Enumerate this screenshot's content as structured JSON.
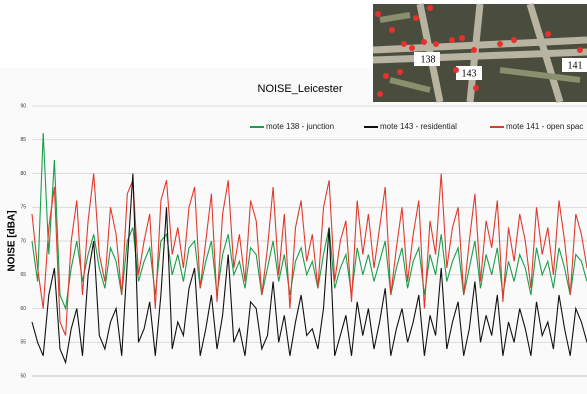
{
  "chart_data": {
    "type": "line",
    "title": "NOISE_Leicester",
    "y_label": "NOISE [dBA]",
    "ylim": [
      50,
      90
    ],
    "yticks": [
      50,
      55,
      60,
      65,
      70,
      75,
      80,
      85,
      90
    ],
    "grid": true,
    "map_labels": [
      "138",
      "143",
      "141"
    ],
    "series": [
      {
        "name": "mote 138 - junction",
        "color": "#1a9e4a",
        "values": [
          70,
          64,
          86,
          68,
          82,
          62,
          60,
          66,
          70,
          64,
          68,
          71,
          66,
          63,
          69,
          67,
          62,
          70,
          72,
          64,
          67,
          69,
          62,
          70,
          71,
          65,
          68,
          64,
          69,
          70,
          63,
          67,
          70,
          62,
          68,
          71,
          65,
          67,
          63,
          69,
          68,
          62,
          66,
          70,
          64,
          68,
          62,
          67,
          69,
          65,
          67,
          63,
          68,
          72,
          63,
          66,
          68,
          62,
          69,
          65,
          68,
          64,
          67,
          70,
          62,
          66,
          69,
          63,
          67,
          69,
          62,
          68,
          65,
          71,
          64,
          67,
          69,
          62,
          66,
          70,
          63,
          68,
          65,
          69,
          62,
          67,
          64,
          68,
          66,
          62,
          69,
          65,
          67,
          63,
          69,
          66,
          62,
          68,
          67,
          64
        ]
      },
      {
        "name": "mote 143 - residential",
        "color": "#111111",
        "values": [
          58,
          55,
          53,
          62,
          66,
          54,
          52,
          57,
          60,
          53,
          65,
          70,
          56,
          54,
          58,
          60,
          53,
          67,
          80,
          55,
          57,
          61,
          53,
          62,
          75,
          54,
          58,
          56,
          63,
          66,
          53,
          57,
          62,
          54,
          59,
          68,
          55,
          57,
          53,
          61,
          60,
          54,
          56,
          64,
          55,
          59,
          53,
          58,
          62,
          56,
          57,
          54,
          60,
          72,
          53,
          56,
          59,
          53,
          61,
          56,
          60,
          54,
          58,
          63,
          53,
          57,
          60,
          55,
          58,
          62,
          53,
          59,
          56,
          66,
          54,
          58,
          61,
          53,
          57,
          64,
          55,
          59,
          56,
          62,
          53,
          58,
          55,
          60,
          57,
          53,
          61,
          56,
          58,
          54,
          62,
          57,
          53,
          60,
          58,
          55
        ]
      },
      {
        "name": "mote 141 - open spac",
        "color": "#e03a2e",
        "values": [
          74,
          66,
          60,
          72,
          78,
          58,
          56,
          70,
          76,
          62,
          73,
          80,
          68,
          64,
          75,
          71,
          62,
          77,
          79,
          65,
          70,
          74,
          60,
          76,
          79,
          68,
          72,
          66,
          75,
          78,
          63,
          70,
          77,
          61,
          74,
          79,
          66,
          71,
          64,
          76,
          73,
          62,
          69,
          78,
          65,
          74,
          60,
          72,
          76,
          67,
          71,
          63,
          75,
          79,
          64,
          70,
          73,
          61,
          76,
          68,
          74,
          66,
          72,
          78,
          62,
          69,
          75,
          64,
          71,
          76,
          60,
          73,
          68,
          80,
          66,
          72,
          75,
          62,
          70,
          77,
          64,
          73,
          69,
          76,
          61,
          72,
          67,
          74,
          70,
          63,
          75,
          68,
          72,
          65,
          76,
          70,
          62,
          74,
          71,
          66
        ]
      }
    ]
  }
}
